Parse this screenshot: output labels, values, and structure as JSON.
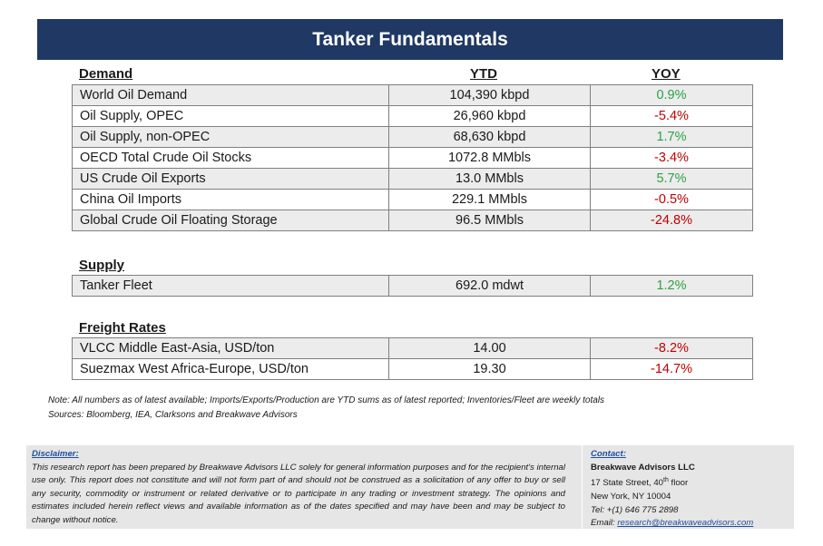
{
  "title": "Tanker Fundamentals",
  "columns": {
    "ytd": "YTD",
    "yoy": "YOY"
  },
  "demand": {
    "header": "Demand",
    "rows": [
      {
        "label": "World Oil Demand",
        "ytd": "104,390 kbpd",
        "yoy": "0.9%",
        "trend": "positive"
      },
      {
        "label": "Oil Supply, OPEC",
        "ytd": "26,960 kbpd",
        "yoy": "-5.4%",
        "trend": "negative"
      },
      {
        "label": "Oil Supply, non-OPEC",
        "ytd": "68,630 kbpd",
        "yoy": "1.7%",
        "trend": "positive"
      },
      {
        "label": "OECD Total Crude Oil Stocks",
        "ytd": "1072.8 MMbls",
        "yoy": "-3.4%",
        "trend": "negative"
      },
      {
        "label": "US Crude Oil Exports",
        "ytd": "13.0 MMbls",
        "yoy": "5.7%",
        "trend": "positive"
      },
      {
        "label": "China Oil Imports",
        "ytd": "229.1 MMbls",
        "yoy": "-0.5%",
        "trend": "negative"
      },
      {
        "label": "Global Crude Oil Floating Storage",
        "ytd": "96.5 MMbls",
        "yoy": "-24.8%",
        "trend": "negative"
      }
    ]
  },
  "supply": {
    "header": "Supply",
    "rows": [
      {
        "label": "Tanker Fleet",
        "ytd": "692.0 mdwt",
        "yoy": "1.2%",
        "trend": "positive"
      }
    ]
  },
  "freight": {
    "header": "Freight Rates",
    "rows": [
      {
        "label": "VLCC Middle East-Asia, USD/ton",
        "ytd": "14.00",
        "yoy": "-8.2%",
        "trend": "negative"
      },
      {
        "label": "Suezmax West Africa-Europe, USD/ton",
        "ytd": "19.30",
        "yoy": "-14.7%",
        "trend": "negative"
      }
    ]
  },
  "notes": {
    "note": "Note:  All numbers as of latest available; Imports/Exports/Production are YTD sums as of latest reported; Inventories/Fleet are weekly totals",
    "sources": "Sources: Bloomberg, IEA, Clarksons and Breakwave Advisors"
  },
  "disclaimer": {
    "heading": "Disclaimer:",
    "text": "This research report has been prepared by Breakwave Advisors LLC solely for general information purposes and for the recipient's internal use only. This report does not constitute and will not form part of and should not be construed as a solicitation of any offer to buy or sell any security, commodity or instrument or related derivative or to participate in any trading or investment strategy. The opinions and estimates included herein reflect views and available information as of the dates specified and may have been and may be subject to change without notice."
  },
  "contact": {
    "heading": "Contact:",
    "company": "Breakwave Advisors LLC",
    "address1": "17 State Street, 40",
    "address1_sup": "th",
    "address1_tail": " floor",
    "address2": "New York, NY 10004",
    "phone": "Tel: +(1) 646 775 2898",
    "email_label": "Email: ",
    "email": "research@breakwaveadvisors.com"
  },
  "colors": {
    "title_bar": "#1f3864",
    "positive": "#2ea043",
    "negative": "#c00000",
    "row_shade": "#ececec",
    "link": "#1f4e9c"
  }
}
